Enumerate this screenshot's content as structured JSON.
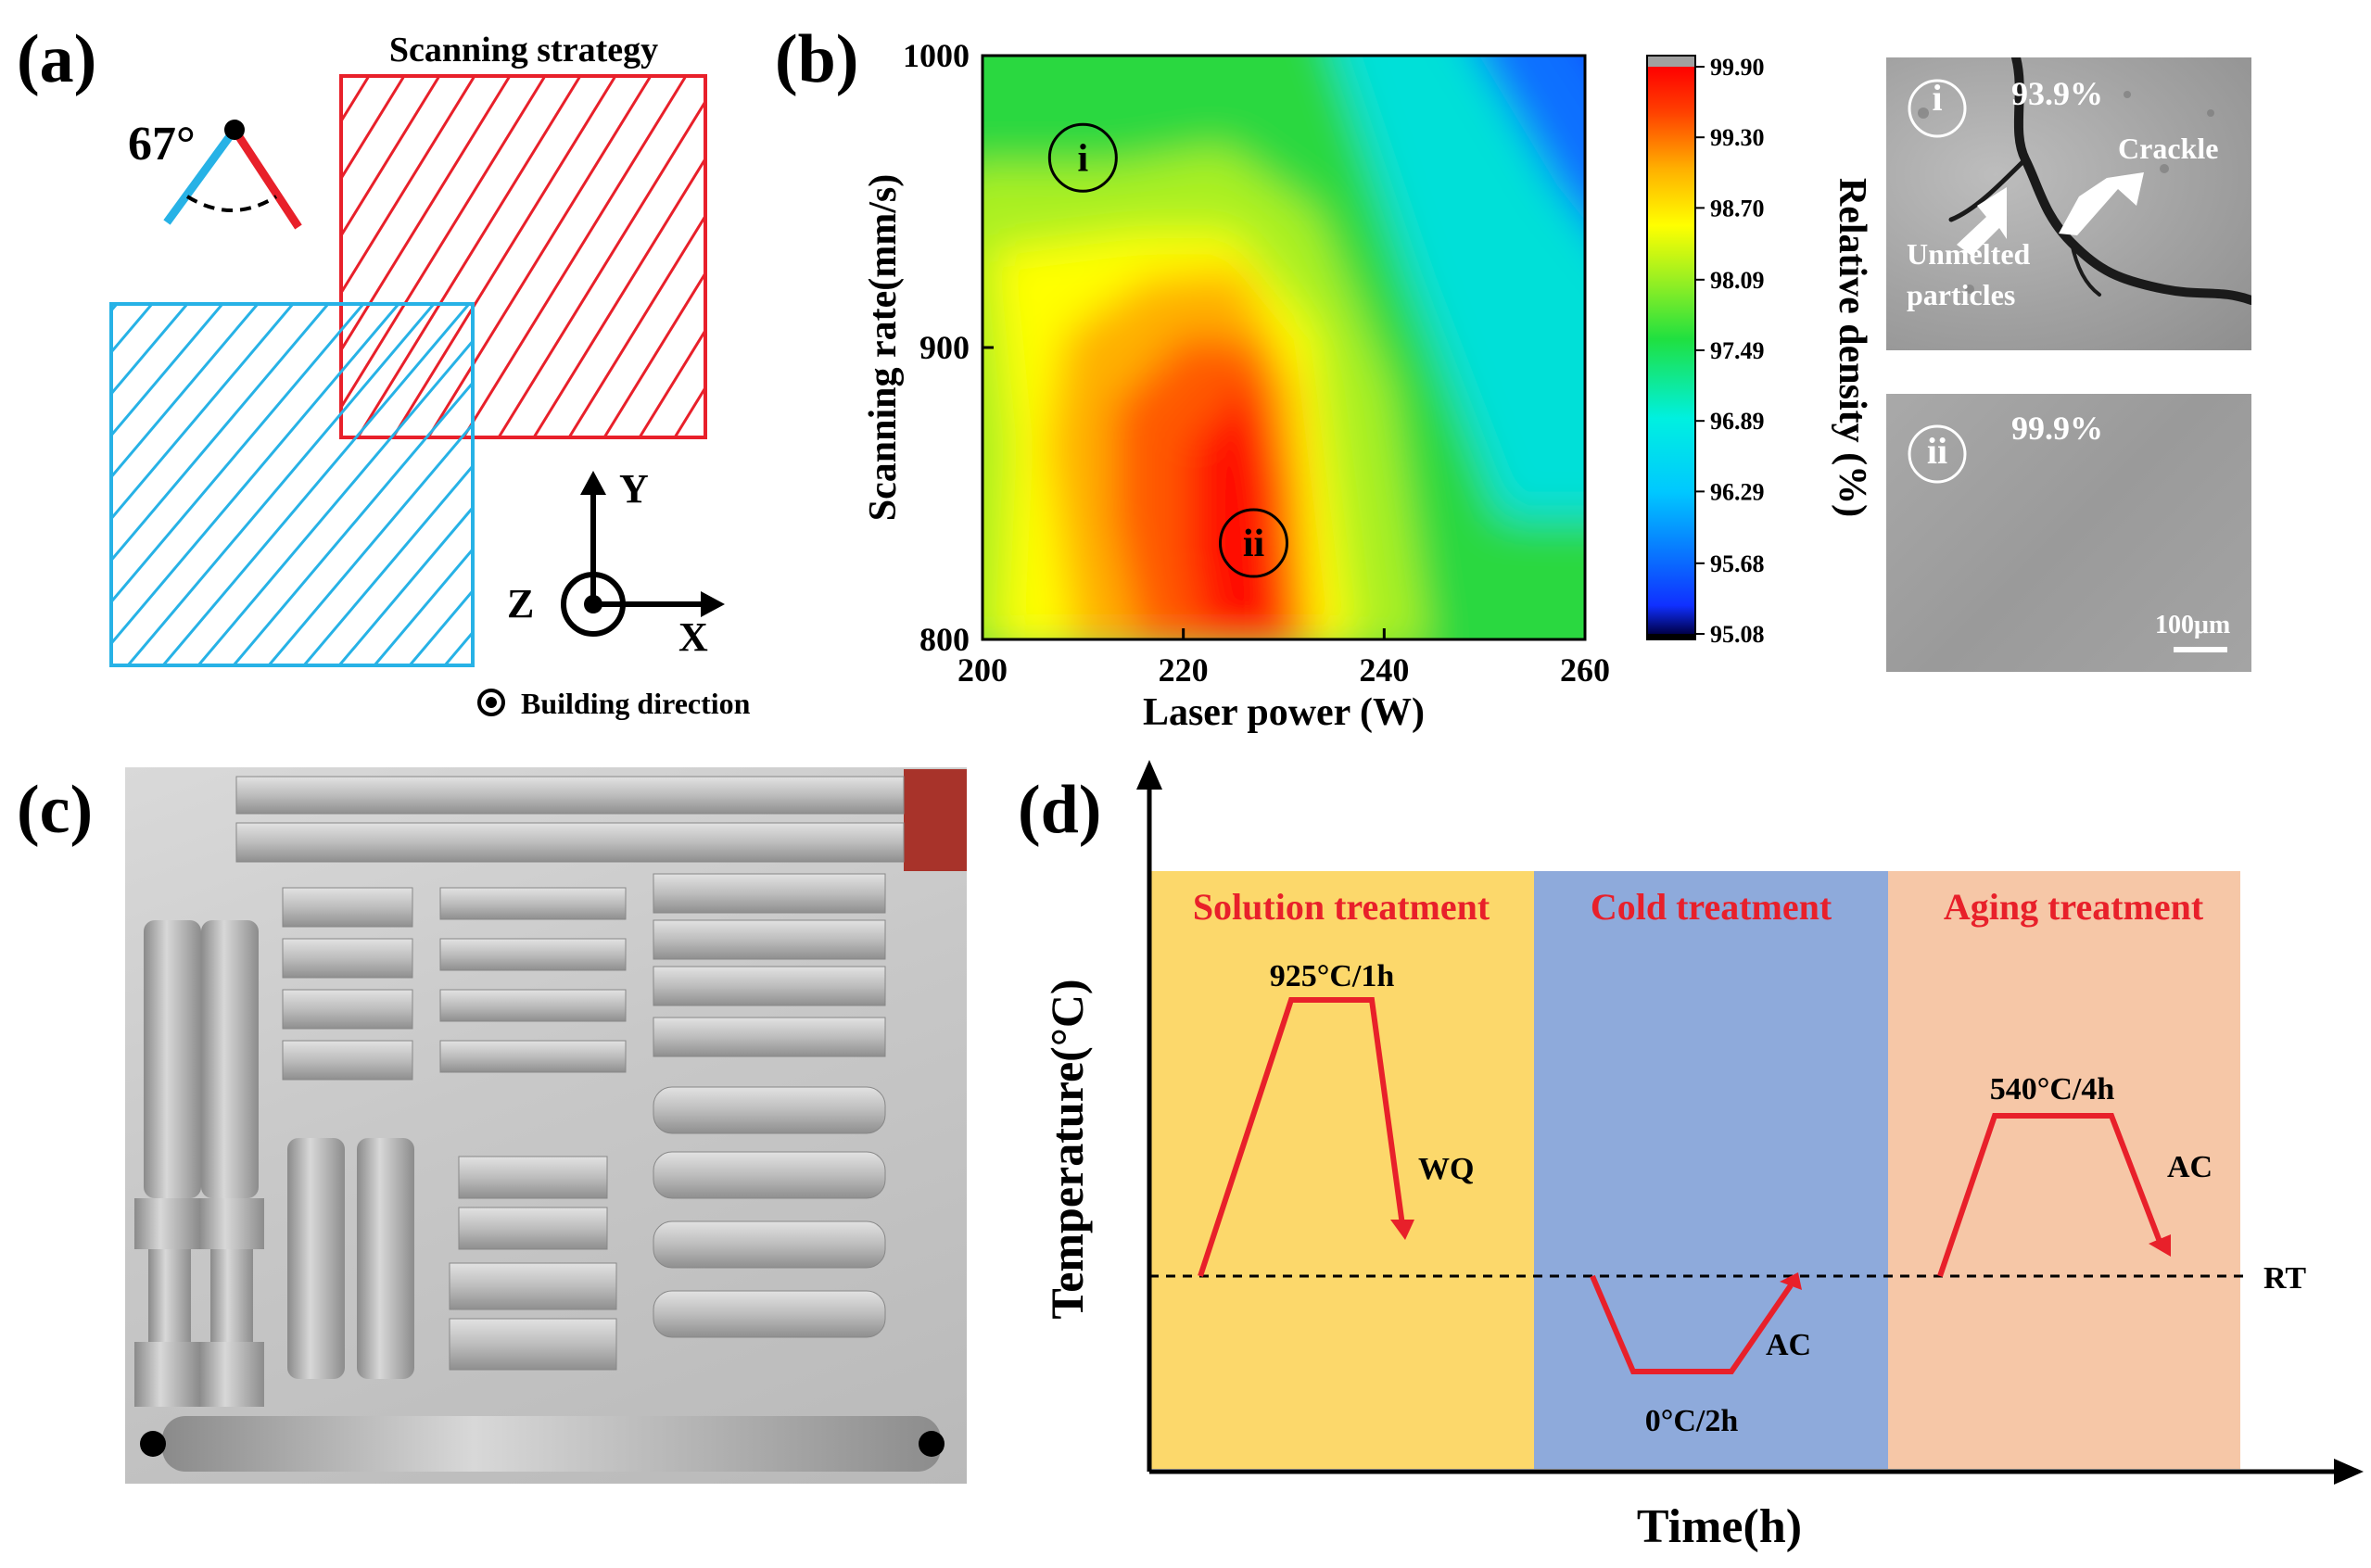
{
  "figure": {
    "panel_a": {
      "label": "(a)",
      "title": "Scanning strategy",
      "angle": "67°",
      "axes": {
        "x": "X",
        "y": "Y",
        "z": "Z"
      },
      "legend": "Building direction",
      "colors": {
        "layer1": "#e8202a",
        "layer2": "#27b2e6"
      }
    },
    "panel_b": {
      "label": "(b)",
      "markers": [
        "i",
        "ii"
      ],
      "micrographs": [
        {
          "id": "i",
          "density": "93.9%",
          "labels": [
            "Crackle",
            "Unmelted",
            "particles"
          ]
        },
        {
          "id": "ii",
          "density": "99.9%",
          "scalebar": "100μm"
        }
      ]
    },
    "panel_c": {
      "label": "(c)"
    },
    "panel_d": {
      "label": "(d)",
      "ylabel": "Temperature(°C)",
      "xlabel": "Time(h)",
      "stages": [
        {
          "name": "Solution treatment",
          "condition": "925°C/1h",
          "cooling": "WQ",
          "color": "#fcd86b"
        },
        {
          "name": "Cold treatment",
          "condition": "0°C/2h",
          "cooling": "AC",
          "color": "#8eaadb"
        },
        {
          "name": "Aging treatment",
          "condition": "540°C/4h",
          "cooling": "AC",
          "color": "#f6c7a7"
        }
      ],
      "reference": "RT",
      "curve_color": "#e8202a"
    }
  },
  "chart_data": {
    "type": "heatmap",
    "title": "",
    "xlabel": "Laser power (W)",
    "ylabel": "Scanning rate(mm/s)",
    "colorbar_label": "Relative density (%)",
    "xlim": [
      200,
      260
    ],
    "ylim": [
      800,
      1000
    ],
    "xticks": [
      "200",
      "220",
      "240",
      "260"
    ],
    "yticks": [
      "800",
      "900",
      "1000"
    ],
    "colorbar_ticks": [
      "99.90",
      "99.30",
      "98.70",
      "98.09",
      "97.49",
      "96.89",
      "96.29",
      "95.68",
      "95.08"
    ],
    "colorbar_range": [
      95.08,
      99.9
    ],
    "annotated_points": [
      {
        "label": "i",
        "x": 210,
        "y": 965,
        "value": 93.9
      },
      {
        "label": "ii",
        "x": 227,
        "y": 833,
        "value": 99.9
      }
    ]
  }
}
